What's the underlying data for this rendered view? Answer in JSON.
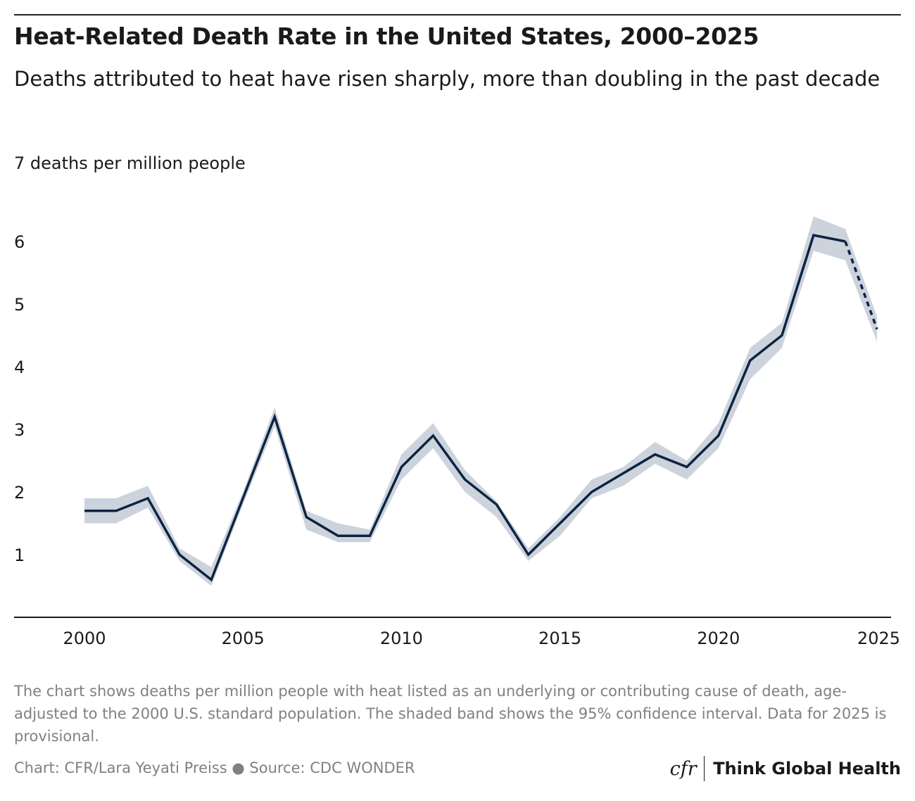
{
  "header": {
    "title": "Heat-Related Death Rate in the United States, 2000–2025",
    "subtitle": "Deaths attributed to heat have risen sharply, more than doubling in the past decade"
  },
  "chart_data": {
    "type": "line",
    "title": "Heat-Related Death Rate in the United States, 2000–2025",
    "subtitle": "Deaths attributed to heat have risen sharply, more than doubling in the past decade",
    "ylabel": "7 deaths per million people",
    "xlabel": "",
    "xlim": [
      2000,
      2025
    ],
    "ylim": [
      0,
      7
    ],
    "x_ticks": [
      "2000",
      "2005",
      "2010",
      "2015",
      "2020",
      "2025"
    ],
    "y_ticks": [
      "1",
      "2",
      "3",
      "4",
      "5",
      "6"
    ],
    "grid": false,
    "legend": "none",
    "series": [
      {
        "x": [
          2000,
          2001,
          2002,
          2003,
          2004,
          2005,
          2006,
          2007,
          2008,
          2009,
          2010,
          2011,
          2012,
          2013,
          2014,
          2015,
          2016,
          2017,
          2018,
          2019,
          2020,
          2021,
          2022,
          2023,
          2024,
          2025
        ],
        "y": [
          1.7,
          1.7,
          1.9,
          1.0,
          0.6,
          1.9,
          3.2,
          1.6,
          1.3,
          1.3,
          2.4,
          2.9,
          2.2,
          1.8,
          1.0,
          1.5,
          2.0,
          2.3,
          2.6,
          2.4,
          2.9,
          4.1,
          4.5,
          6.1,
          6.0,
          4.6
        ],
        "ci_low": [
          1.5,
          1.5,
          1.75,
          0.9,
          0.5,
          1.8,
          3.05,
          1.4,
          1.2,
          1.2,
          2.2,
          2.7,
          2.0,
          1.6,
          0.9,
          1.3,
          1.9,
          2.1,
          2.45,
          2.2,
          2.7,
          3.8,
          4.3,
          5.85,
          5.7,
          4.4
        ],
        "ci_high": [
          1.9,
          1.9,
          2.1,
          1.1,
          0.8,
          2.0,
          3.35,
          1.7,
          1.5,
          1.4,
          2.6,
          3.1,
          2.35,
          1.85,
          1.1,
          1.6,
          2.2,
          2.4,
          2.8,
          2.5,
          3.1,
          4.3,
          4.7,
          6.4,
          6.2,
          4.8
        ],
        "provisional_from": 2024
      }
    ],
    "colors": {
      "line": "#0d2440",
      "band": "#ccd3dd",
      "axis": "#1a1a1a"
    }
  },
  "footer": {
    "note": "The chart shows deaths per million people with heat listed as an underlying or contributing cause of death, age-adjusted to the 2000 U.S. standard population. The shaded band shows the 95% confidence interval. Data for 2025 is provisional.",
    "credit": "Chart: CFR/Lara Yeyati Preiss ● Source: CDC WONDER",
    "logo_mark": "cfr",
    "logo_text": "Think Global Health"
  }
}
